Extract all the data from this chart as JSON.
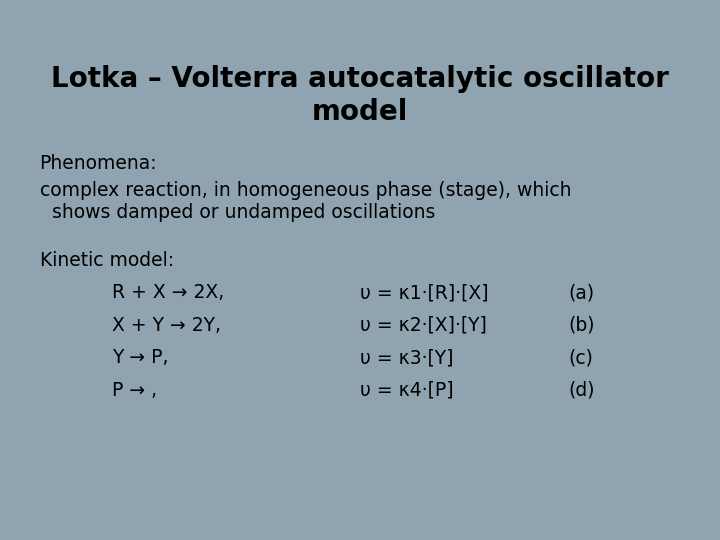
{
  "background_color": "#8fa4b0",
  "title_line1": "Lotka – Volterra autocatalytic oscillator",
  "title_line2": "model",
  "title_fontsize": 20,
  "title_fontweight": "bold",
  "phenomena_label": "Phenomena:",
  "phenomena_text1": "complex reaction, in homogeneous phase (stage), which",
  "phenomena_text2": "  shows damped or undamped oscillations",
  "kinetic_label": "Kinetic model:",
  "reactions": [
    "R + X → 2X,",
    "X + Y → 2Y,",
    "Y → P,",
    "P → ,"
  ],
  "rates": [
    "υ = κ1·[R]·[X]",
    "υ = κ2·[X]·[Y]",
    "υ = κ3·[Y]",
    "υ = κ4·[P]"
  ],
  "labels": [
    "(a)",
    "(b)",
    "(c)",
    "(d)"
  ],
  "text_color": "#000000",
  "body_fontsize": 13.5,
  "fontfamily": "DejaVu Sans"
}
